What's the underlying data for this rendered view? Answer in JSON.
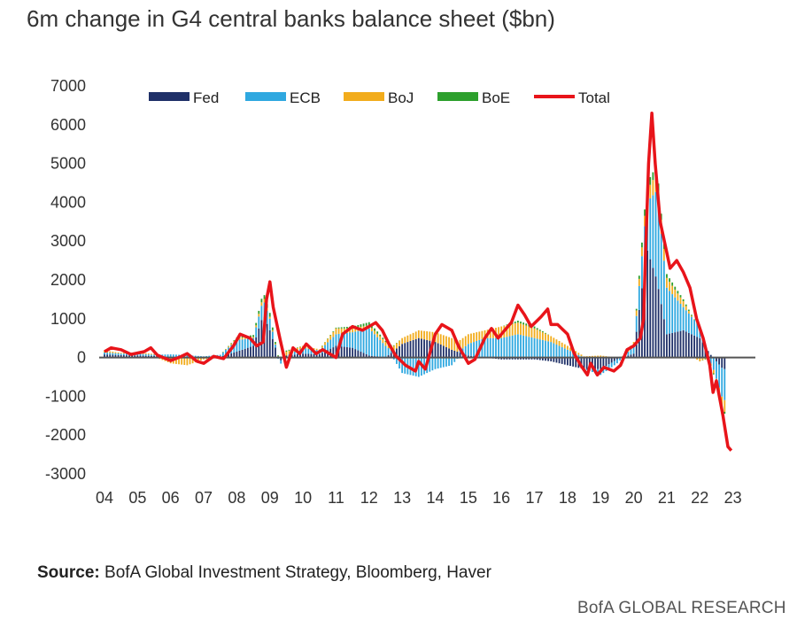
{
  "page": {
    "title": "6m change in G4 central banks balance sheet ($bn)",
    "source_label": "Source:",
    "source_text": " BofA Global Investment Strategy, Bloomberg, Haver",
    "brand": "BofA GLOBAL RESEARCH"
  },
  "chart_data": {
    "type": "bar",
    "title": "6m change in G4 central banks balance sheet ($bn)",
    "xlabel": "",
    "ylabel": "",
    "x_ticks": [
      "04",
      "05",
      "06",
      "07",
      "08",
      "09",
      "10",
      "11",
      "12",
      "13",
      "14",
      "15",
      "16",
      "17",
      "18",
      "19",
      "20",
      "21",
      "22",
      "23"
    ],
    "y_ticks": [
      "7000",
      "6000",
      "5000",
      "4000",
      "3000",
      "2000",
      "1000",
      "0",
      "-1000",
      "-2000",
      "-3000"
    ],
    "ylim": [
      -3000,
      7000
    ],
    "xlim": [
      2004,
      2023.5
    ],
    "legend_position": "top",
    "grid": false,
    "stacked": true,
    "series": [
      {
        "name": "Fed",
        "kind": "bar",
        "color": "#1f3068",
        "points": [
          [
            2004.0,
            80
          ],
          [
            2004.5,
            60
          ],
          [
            2005.0,
            50
          ],
          [
            2005.5,
            40
          ],
          [
            2006.0,
            20
          ],
          [
            2006.5,
            10
          ],
          [
            2007.0,
            0
          ],
          [
            2007.5,
            20
          ],
          [
            2008.0,
            150
          ],
          [
            2008.5,
            300
          ],
          [
            2008.8,
            1100
          ],
          [
            2009.0,
            700
          ],
          [
            2009.3,
            -100
          ],
          [
            2009.5,
            50
          ],
          [
            2010.0,
            100
          ],
          [
            2010.5,
            80
          ],
          [
            2011.0,
            300
          ],
          [
            2011.5,
            250
          ],
          [
            2012.0,
            50
          ],
          [
            2012.5,
            0
          ],
          [
            2013.0,
            350
          ],
          [
            2013.5,
            500
          ],
          [
            2014.0,
            400
          ],
          [
            2014.5,
            200
          ],
          [
            2015.0,
            50
          ],
          [
            2015.5,
            0
          ],
          [
            2016.0,
            -50
          ],
          [
            2016.5,
            -50
          ],
          [
            2017.0,
            -50
          ],
          [
            2017.5,
            -100
          ],
          [
            2018.0,
            -200
          ],
          [
            2018.5,
            -300
          ],
          [
            2019.0,
            -300
          ],
          [
            2019.5,
            -50
          ],
          [
            2020.0,
            100
          ],
          [
            2020.4,
            2800
          ],
          [
            2020.7,
            2000
          ],
          [
            2021.0,
            600
          ],
          [
            2021.5,
            700
          ],
          [
            2022.0,
            500
          ],
          [
            2022.3,
            100
          ],
          [
            2022.7,
            -300
          ]
        ]
      },
      {
        "name": "ECB",
        "kind": "bar",
        "color": "#2fa8e0",
        "points": [
          [
            2004.0,
            50
          ],
          [
            2004.5,
            40
          ],
          [
            2005.0,
            50
          ],
          [
            2005.5,
            30
          ],
          [
            2006.0,
            60
          ],
          [
            2006.5,
            50
          ],
          [
            2007.0,
            30
          ],
          [
            2007.5,
            50
          ],
          [
            2008.0,
            300
          ],
          [
            2008.5,
            200
          ],
          [
            2008.8,
            400
          ],
          [
            2009.0,
            300
          ],
          [
            2009.3,
            -100
          ],
          [
            2009.5,
            0
          ],
          [
            2010.0,
            150
          ],
          [
            2010.5,
            100
          ],
          [
            2011.0,
            300
          ],
          [
            2011.5,
            400
          ],
          [
            2012.0,
            700
          ],
          [
            2012.5,
            300
          ],
          [
            2013.0,
            -400
          ],
          [
            2013.5,
            -500
          ],
          [
            2014.0,
            -300
          ],
          [
            2014.5,
            -200
          ],
          [
            2015.0,
            300
          ],
          [
            2015.5,
            500
          ],
          [
            2016.0,
            500
          ],
          [
            2016.5,
            600
          ],
          [
            2017.0,
            500
          ],
          [
            2017.5,
            400
          ],
          [
            2018.0,
            200
          ],
          [
            2018.5,
            0
          ],
          [
            2019.0,
            -150
          ],
          [
            2019.5,
            -100
          ],
          [
            2020.0,
            200
          ],
          [
            2020.4,
            1200
          ],
          [
            2020.7,
            2300
          ],
          [
            2021.0,
            1200
          ],
          [
            2021.5,
            600
          ],
          [
            2022.0,
            300
          ],
          [
            2022.3,
            -100
          ],
          [
            2022.7,
            -800
          ]
        ]
      },
      {
        "name": "BoJ",
        "kind": "bar",
        "color": "#f2ac1c",
        "points": [
          [
            2004.0,
            50
          ],
          [
            2004.5,
            20
          ],
          [
            2005.0,
            30
          ],
          [
            2005.5,
            20
          ],
          [
            2006.0,
            -150
          ],
          [
            2006.5,
            -200
          ],
          [
            2007.0,
            -50
          ],
          [
            2007.5,
            0
          ],
          [
            2008.0,
            50
          ],
          [
            2008.5,
            30
          ],
          [
            2008.8,
            100
          ],
          [
            2009.0,
            50
          ],
          [
            2009.3,
            0
          ],
          [
            2009.5,
            100
          ],
          [
            2010.0,
            50
          ],
          [
            2010.5,
            30
          ],
          [
            2011.0,
            150
          ],
          [
            2011.5,
            100
          ],
          [
            2012.0,
            80
          ],
          [
            2012.5,
            100
          ],
          [
            2013.0,
            150
          ],
          [
            2013.5,
            200
          ],
          [
            2014.0,
            250
          ],
          [
            2014.5,
            300
          ],
          [
            2015.0,
            250
          ],
          [
            2015.5,
            200
          ],
          [
            2016.0,
            300
          ],
          [
            2016.5,
            300
          ],
          [
            2017.0,
            250
          ],
          [
            2017.5,
            150
          ],
          [
            2018.0,
            100
          ],
          [
            2018.5,
            30
          ],
          [
            2019.0,
            50
          ],
          [
            2019.5,
            0
          ],
          [
            2020.0,
            100
          ],
          [
            2020.4,
            300
          ],
          [
            2020.7,
            450
          ],
          [
            2021.0,
            250
          ],
          [
            2021.5,
            150
          ],
          [
            2022.0,
            -100
          ],
          [
            2022.3,
            0
          ],
          [
            2022.7,
            -300
          ]
        ]
      },
      {
        "name": "BoE",
        "kind": "bar",
        "color": "#2da02d",
        "points": [
          [
            2004.0,
            0
          ],
          [
            2004.5,
            0
          ],
          [
            2005.0,
            0
          ],
          [
            2005.5,
            0
          ],
          [
            2006.0,
            0
          ],
          [
            2006.5,
            0
          ],
          [
            2007.0,
            0
          ],
          [
            2007.5,
            0
          ],
          [
            2008.0,
            20
          ],
          [
            2008.5,
            50
          ],
          [
            2008.8,
            100
          ],
          [
            2009.0,
            100
          ],
          [
            2009.3,
            0
          ],
          [
            2009.5,
            30
          ],
          [
            2010.0,
            0
          ],
          [
            2010.5,
            0
          ],
          [
            2011.0,
            20
          ],
          [
            2011.5,
            50
          ],
          [
            2012.0,
            80
          ],
          [
            2012.5,
            30
          ],
          [
            2013.0,
            0
          ],
          [
            2013.5,
            0
          ],
          [
            2014.0,
            0
          ],
          [
            2014.5,
            0
          ],
          [
            2015.0,
            0
          ],
          [
            2015.5,
            0
          ],
          [
            2016.0,
            0
          ],
          [
            2016.5,
            50
          ],
          [
            2017.0,
            50
          ],
          [
            2017.5,
            0
          ],
          [
            2018.0,
            0
          ],
          [
            2018.5,
            0
          ],
          [
            2019.0,
            0
          ],
          [
            2019.5,
            0
          ],
          [
            2020.0,
            0
          ],
          [
            2020.4,
            200
          ],
          [
            2020.7,
            200
          ],
          [
            2021.0,
            100
          ],
          [
            2021.5,
            50
          ],
          [
            2022.0,
            0
          ],
          [
            2022.3,
            -20
          ],
          [
            2022.7,
            -50
          ]
        ]
      },
      {
        "name": "Total",
        "kind": "line",
        "color": "#e8141a",
        "points": [
          [
            2004.0,
            150
          ],
          [
            2004.2,
            250
          ],
          [
            2004.5,
            200
          ],
          [
            2004.8,
            80
          ],
          [
            2005.2,
            150
          ],
          [
            2005.4,
            250
          ],
          [
            2005.6,
            60
          ],
          [
            2006.0,
            -80
          ],
          [
            2006.3,
            20
          ],
          [
            2006.5,
            100
          ],
          [
            2006.8,
            -100
          ],
          [
            2007.0,
            -150
          ],
          [
            2007.3,
            30
          ],
          [
            2007.6,
            -30
          ],
          [
            2007.9,
            300
          ],
          [
            2008.1,
            600
          ],
          [
            2008.4,
            500
          ],
          [
            2008.6,
            300
          ],
          [
            2008.8,
            400
          ],
          [
            2008.9,
            1500
          ],
          [
            2009.0,
            1950
          ],
          [
            2009.1,
            1300
          ],
          [
            2009.3,
            500
          ],
          [
            2009.5,
            -250
          ],
          [
            2009.7,
            250
          ],
          [
            2009.9,
            100
          ],
          [
            2010.1,
            350
          ],
          [
            2010.4,
            100
          ],
          [
            2010.6,
            200
          ],
          [
            2010.8,
            100
          ],
          [
            2011.0,
            0
          ],
          [
            2011.2,
            600
          ],
          [
            2011.5,
            800
          ],
          [
            2011.8,
            700
          ],
          [
            2012.0,
            800
          ],
          [
            2012.2,
            900
          ],
          [
            2012.4,
            700
          ],
          [
            2012.6,
            350
          ],
          [
            2012.8,
            50
          ],
          [
            2013.1,
            -200
          ],
          [
            2013.4,
            -350
          ],
          [
            2013.5,
            -100
          ],
          [
            2013.7,
            -300
          ],
          [
            2014.0,
            600
          ],
          [
            2014.2,
            850
          ],
          [
            2014.5,
            700
          ],
          [
            2014.7,
            300
          ],
          [
            2015.0,
            -150
          ],
          [
            2015.2,
            -50
          ],
          [
            2015.5,
            500
          ],
          [
            2015.7,
            750
          ],
          [
            2015.9,
            500
          ],
          [
            2016.1,
            700
          ],
          [
            2016.3,
            900
          ],
          [
            2016.5,
            1350
          ],
          [
            2016.7,
            1100
          ],
          [
            2016.9,
            800
          ],
          [
            2017.2,
            1050
          ],
          [
            2017.4,
            1250
          ],
          [
            2017.5,
            850
          ],
          [
            2017.7,
            850
          ],
          [
            2018.0,
            600
          ],
          [
            2018.2,
            100
          ],
          [
            2018.4,
            -200
          ],
          [
            2018.6,
            -450
          ],
          [
            2018.7,
            -150
          ],
          [
            2018.9,
            -450
          ],
          [
            2019.1,
            -250
          ],
          [
            2019.4,
            -350
          ],
          [
            2019.6,
            -200
          ],
          [
            2019.8,
            200
          ],
          [
            2020.0,
            300
          ],
          [
            2020.2,
            500
          ],
          [
            2020.3,
            1000
          ],
          [
            2020.35,
            2500
          ],
          [
            2020.45,
            5000
          ],
          [
            2020.55,
            6300
          ],
          [
            2020.65,
            5000
          ],
          [
            2020.8,
            3500
          ],
          [
            2021.0,
            2700
          ],
          [
            2021.1,
            2300
          ],
          [
            2021.3,
            2500
          ],
          [
            2021.5,
            2200
          ],
          [
            2021.7,
            1800
          ],
          [
            2021.9,
            1000
          ],
          [
            2022.1,
            500
          ],
          [
            2022.3,
            -200
          ],
          [
            2022.4,
            -900
          ],
          [
            2022.5,
            -600
          ],
          [
            2022.7,
            -1500
          ],
          [
            2022.85,
            -2300
          ],
          [
            2022.95,
            -2400
          ]
        ]
      }
    ]
  }
}
